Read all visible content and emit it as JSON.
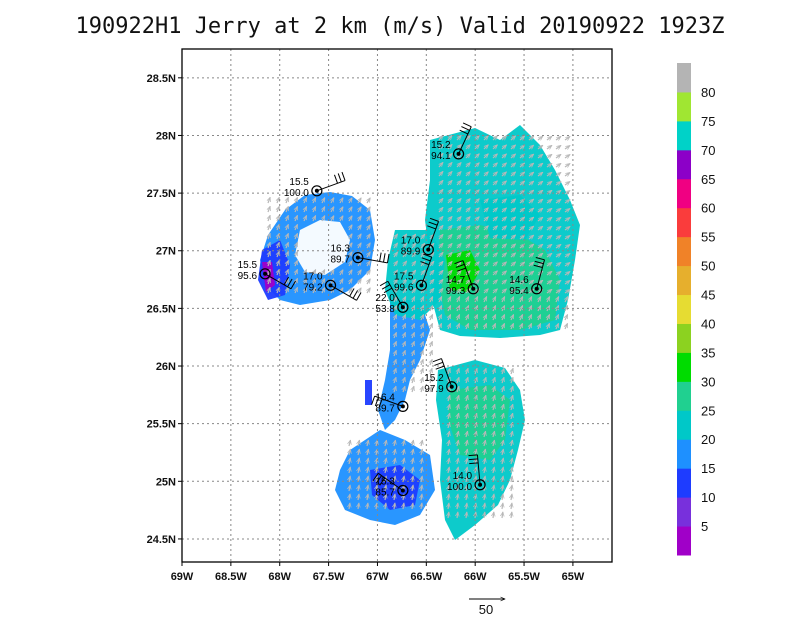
{
  "title": "190922H1 Jerry at 2 km (m/s) Valid 20190922 1923Z",
  "colors": {
    "gray_arrow": "#b8b8b8",
    "frame": "#000000",
    "grid": "#888888"
  },
  "chart_data": {
    "type": "map",
    "title": "190922H1 Jerry at 2 km (m/s) Valid 20190922 1923Z",
    "xlim": [
      -69.0,
      -64.6
    ],
    "ylim": [
      24.3,
      28.75
    ],
    "xticks": [
      -69.0,
      -68.5,
      -68.0,
      -67.5,
      -67.0,
      -66.5,
      -66.0,
      -65.5,
      -65.0
    ],
    "xtick_labels": [
      "69W",
      "68.5W",
      "68W",
      "67.5W",
      "67W",
      "66.5W",
      "66W",
      "65.5W",
      "65W"
    ],
    "yticks": [
      24.5,
      25.0,
      25.5,
      26.0,
      26.5,
      27.0,
      27.5,
      28.0,
      28.5
    ],
    "ytick_labels": [
      "24.5N",
      "25N",
      "25.5N",
      "26N",
      "26.5N",
      "27N",
      "27.5N",
      "28N",
      "28.5N"
    ],
    "grid": true,
    "reference_vector": {
      "value": 50,
      "label": "50"
    },
    "colorbar": {
      "labels": [
        "5",
        "10",
        "15",
        "20",
        "25",
        "30",
        "35",
        "40",
        "45",
        "50",
        "55",
        "60",
        "65",
        "70",
        "75",
        "80"
      ],
      "colors": [
        "#a000c8",
        "#7830dc",
        "#1e3cff",
        "#1e90ff",
        "#00c8c8",
        "#20d090",
        "#00dc00",
        "#8cd220",
        "#e6dc32",
        "#e6af2d",
        "#f08228",
        "#fa3c3c",
        "#f00082",
        "#8c00c8",
        "#00d2c8",
        "#a0e632",
        "#b4b4b4"
      ]
    },
    "stations": [
      {
        "lon": -67.62,
        "lat": 27.52,
        "label1": "15.5",
        "label2": "100.0",
        "dir": 110
      },
      {
        "lon": -66.17,
        "lat": 27.84,
        "label1": "15.2",
        "label2": "94.1",
        "dir": 155
      },
      {
        "lon": -68.15,
        "lat": 26.8,
        "label1": "15.5",
        "label2": "95.6",
        "dir": 60
      },
      {
        "lon": -67.2,
        "lat": 26.94,
        "label1": "16.3",
        "label2": "89.7",
        "dir": 80
      },
      {
        "lon": -67.48,
        "lat": 26.7,
        "label1": "17.0",
        "label2": "79.2",
        "dir": 60
      },
      {
        "lon": -66.48,
        "lat": 27.01,
        "label1": "17.0",
        "label2": "89.9",
        "dir": 160
      },
      {
        "lon": -66.55,
        "lat": 26.7,
        "label1": "17.5",
        "label2": "99.6",
        "dir": 160
      },
      {
        "lon": -66.74,
        "lat": 26.51,
        "label1": "22.0",
        "label2": "53.8",
        "dir": 210
      },
      {
        "lon": -66.02,
        "lat": 26.67,
        "label1": "14.7",
        "label2": "99.3",
        "dir": 200
      },
      {
        "lon": -65.37,
        "lat": 26.67,
        "label1": "14.6",
        "label2": "95.4",
        "dir": 165
      },
      {
        "lon": -66.24,
        "lat": 25.82,
        "label1": "15.2",
        "label2": "97.9",
        "dir": 200
      },
      {
        "lon": -66.74,
        "lat": 25.65,
        "label1": "16.4",
        "label2": "89.7",
        "dir": 250
      },
      {
        "lon": -65.95,
        "lat": 24.97,
        "label1": "14.0",
        "label2": "100.0",
        "dir": 185
      },
      {
        "lon": -66.74,
        "lat": 24.92,
        "label1": "15.3",
        "label2": "85.7",
        "dir": 235
      }
    ]
  }
}
